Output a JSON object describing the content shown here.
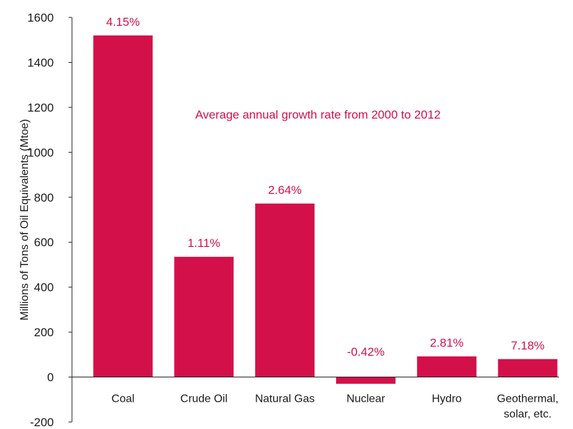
{
  "chart_data": {
    "type": "bar",
    "categories": [
      [
        "Coal"
      ],
      [
        "Crude Oil"
      ],
      [
        "Natural Gas"
      ],
      [
        "Nuclear"
      ],
      [
        "Hydro"
      ],
      [
        "Geothermal,",
        "solar, etc."
      ]
    ],
    "values": [
      1520,
      535,
      772,
      -30,
      92,
      80
    ],
    "data_labels": [
      "4.15%",
      "1.11%",
      "2.64%",
      "-0.42%",
      "2.81%",
      "7.18%"
    ],
    "ylabel": "Millions of Tons of Oil Equivalents (Mtoe)",
    "ylim": [
      -200,
      1600
    ],
    "yticks": [
      -200,
      0,
      200,
      400,
      600,
      800,
      1000,
      1200,
      1400,
      1600
    ],
    "annotation": "Average annual growth rate from 2000 to 2012",
    "grid": false,
    "bar_color": "#d4104a",
    "label_color": "#d4104a"
  }
}
